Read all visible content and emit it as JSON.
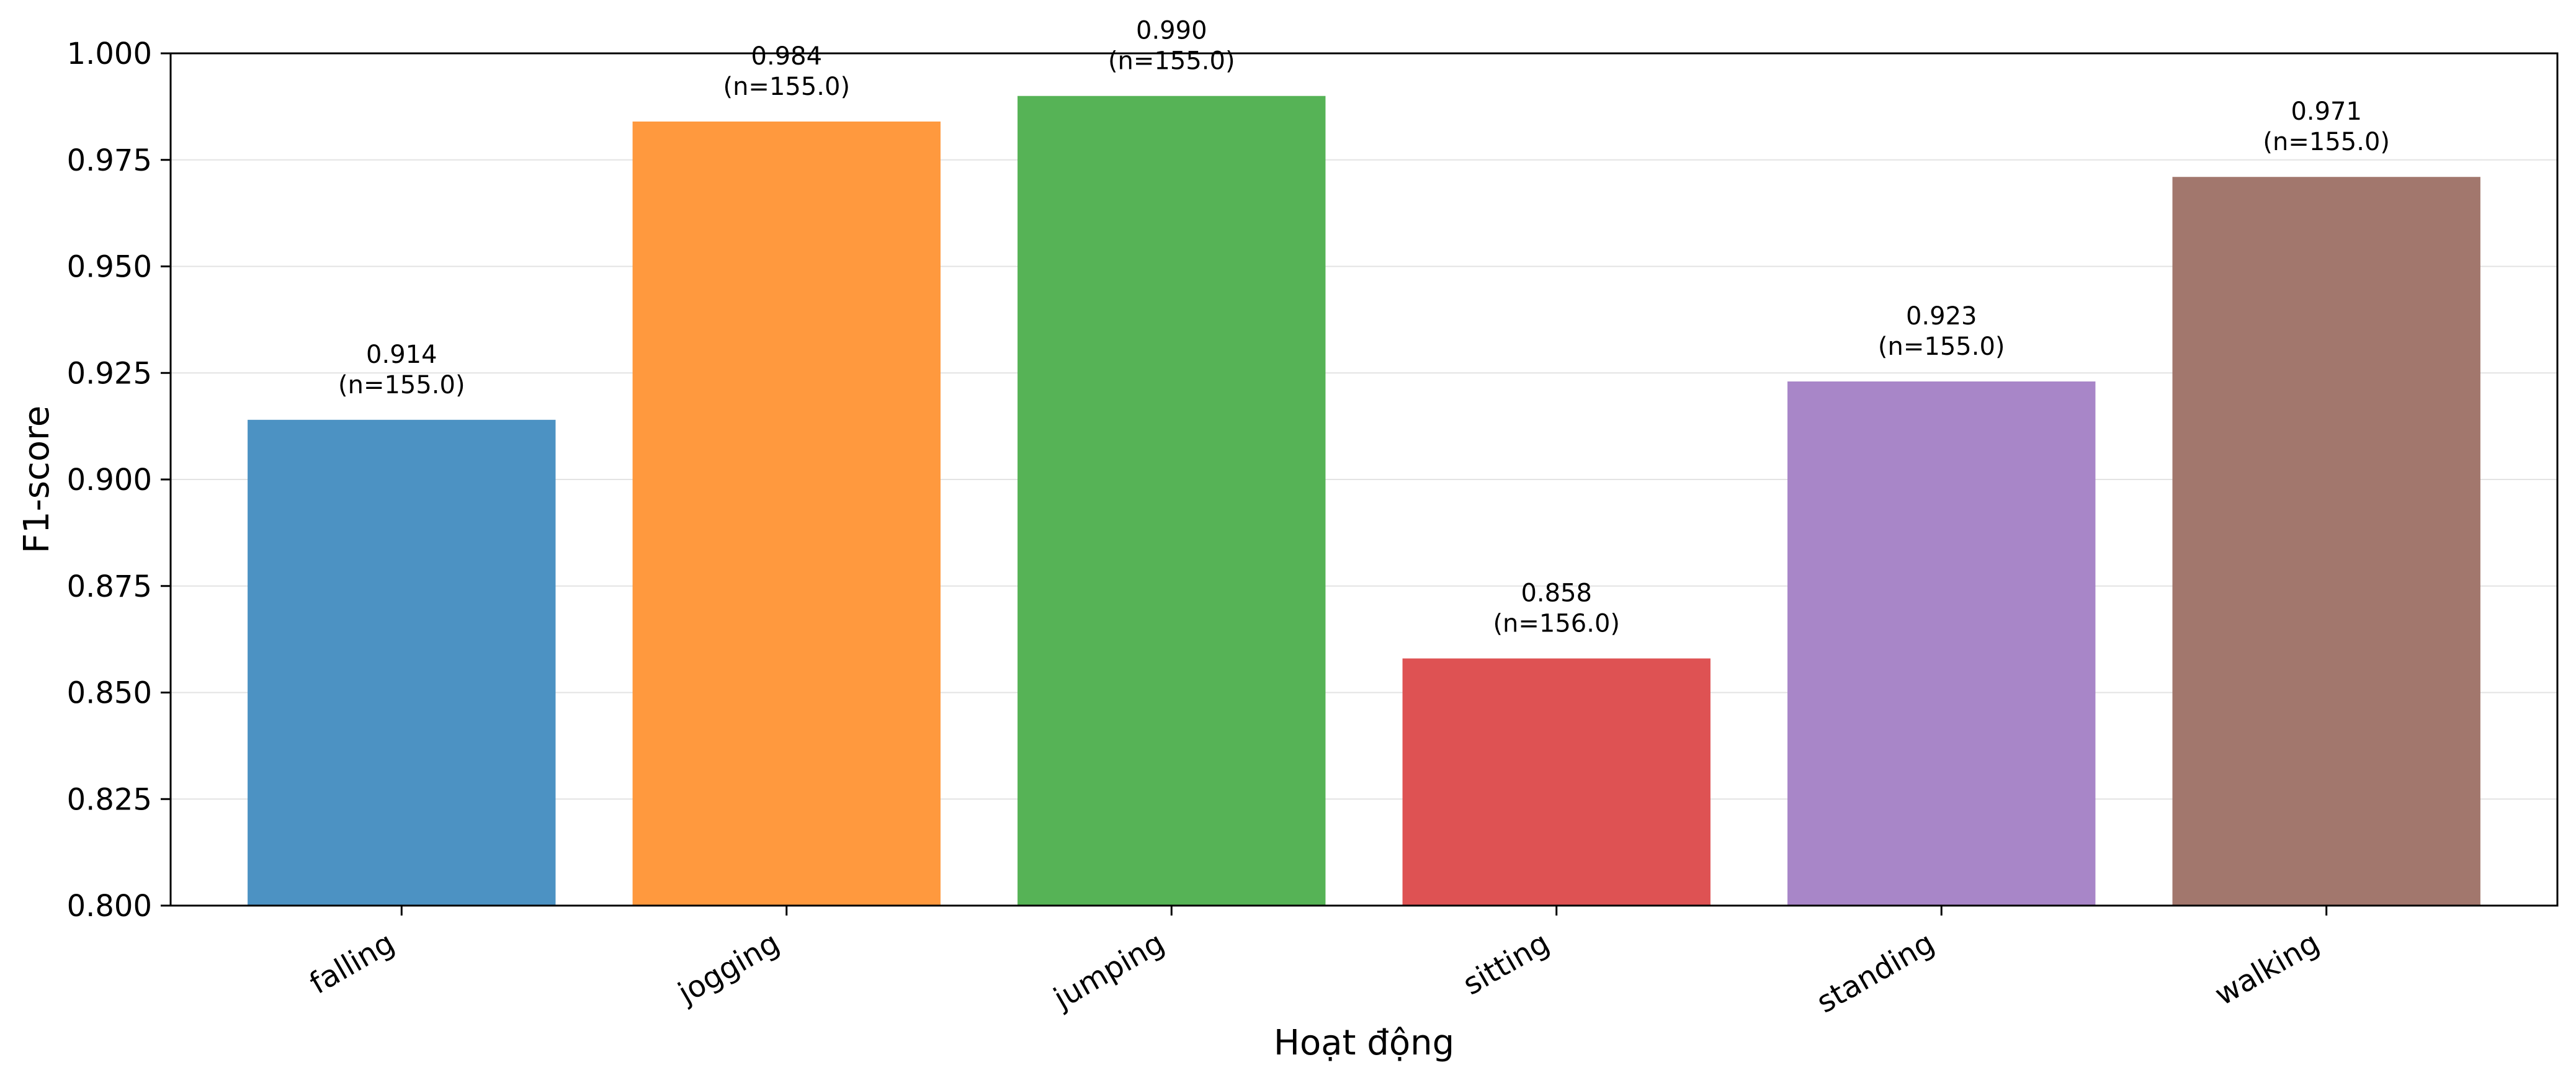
{
  "chart_data": {
    "type": "bar",
    "title": "",
    "xlabel": "Hoạt động",
    "ylabel": "F1-score",
    "ylim": [
      0.8,
      1.0
    ],
    "yticks": [
      0.8,
      0.825,
      0.85,
      0.875,
      0.9,
      0.925,
      0.95,
      0.975,
      1.0
    ],
    "ytick_labels": [
      "0.800",
      "0.825",
      "0.850",
      "0.875",
      "0.900",
      "0.925",
      "0.950",
      "0.975",
      "1.000"
    ],
    "grid": "horizontal",
    "categories": [
      "falling",
      "jogging",
      "jumping",
      "sitting",
      "standing",
      "walking"
    ],
    "values": [
      0.914,
      0.984,
      0.99,
      0.858,
      0.923,
      0.971
    ],
    "value_labels": [
      "0.914",
      "0.984",
      "0.990",
      "0.858",
      "0.923",
      "0.971"
    ],
    "count_labels": [
      "(n=155.0)",
      "(n=155.0)",
      "(n=155.0)",
      "(n=156.0)",
      "(n=155.0)",
      "(n=155.0)"
    ],
    "colors": [
      "#4c92c3",
      "#ff993e",
      "#56b356",
      "#de5253",
      "#a886c8",
      "#a2776d"
    ]
  }
}
